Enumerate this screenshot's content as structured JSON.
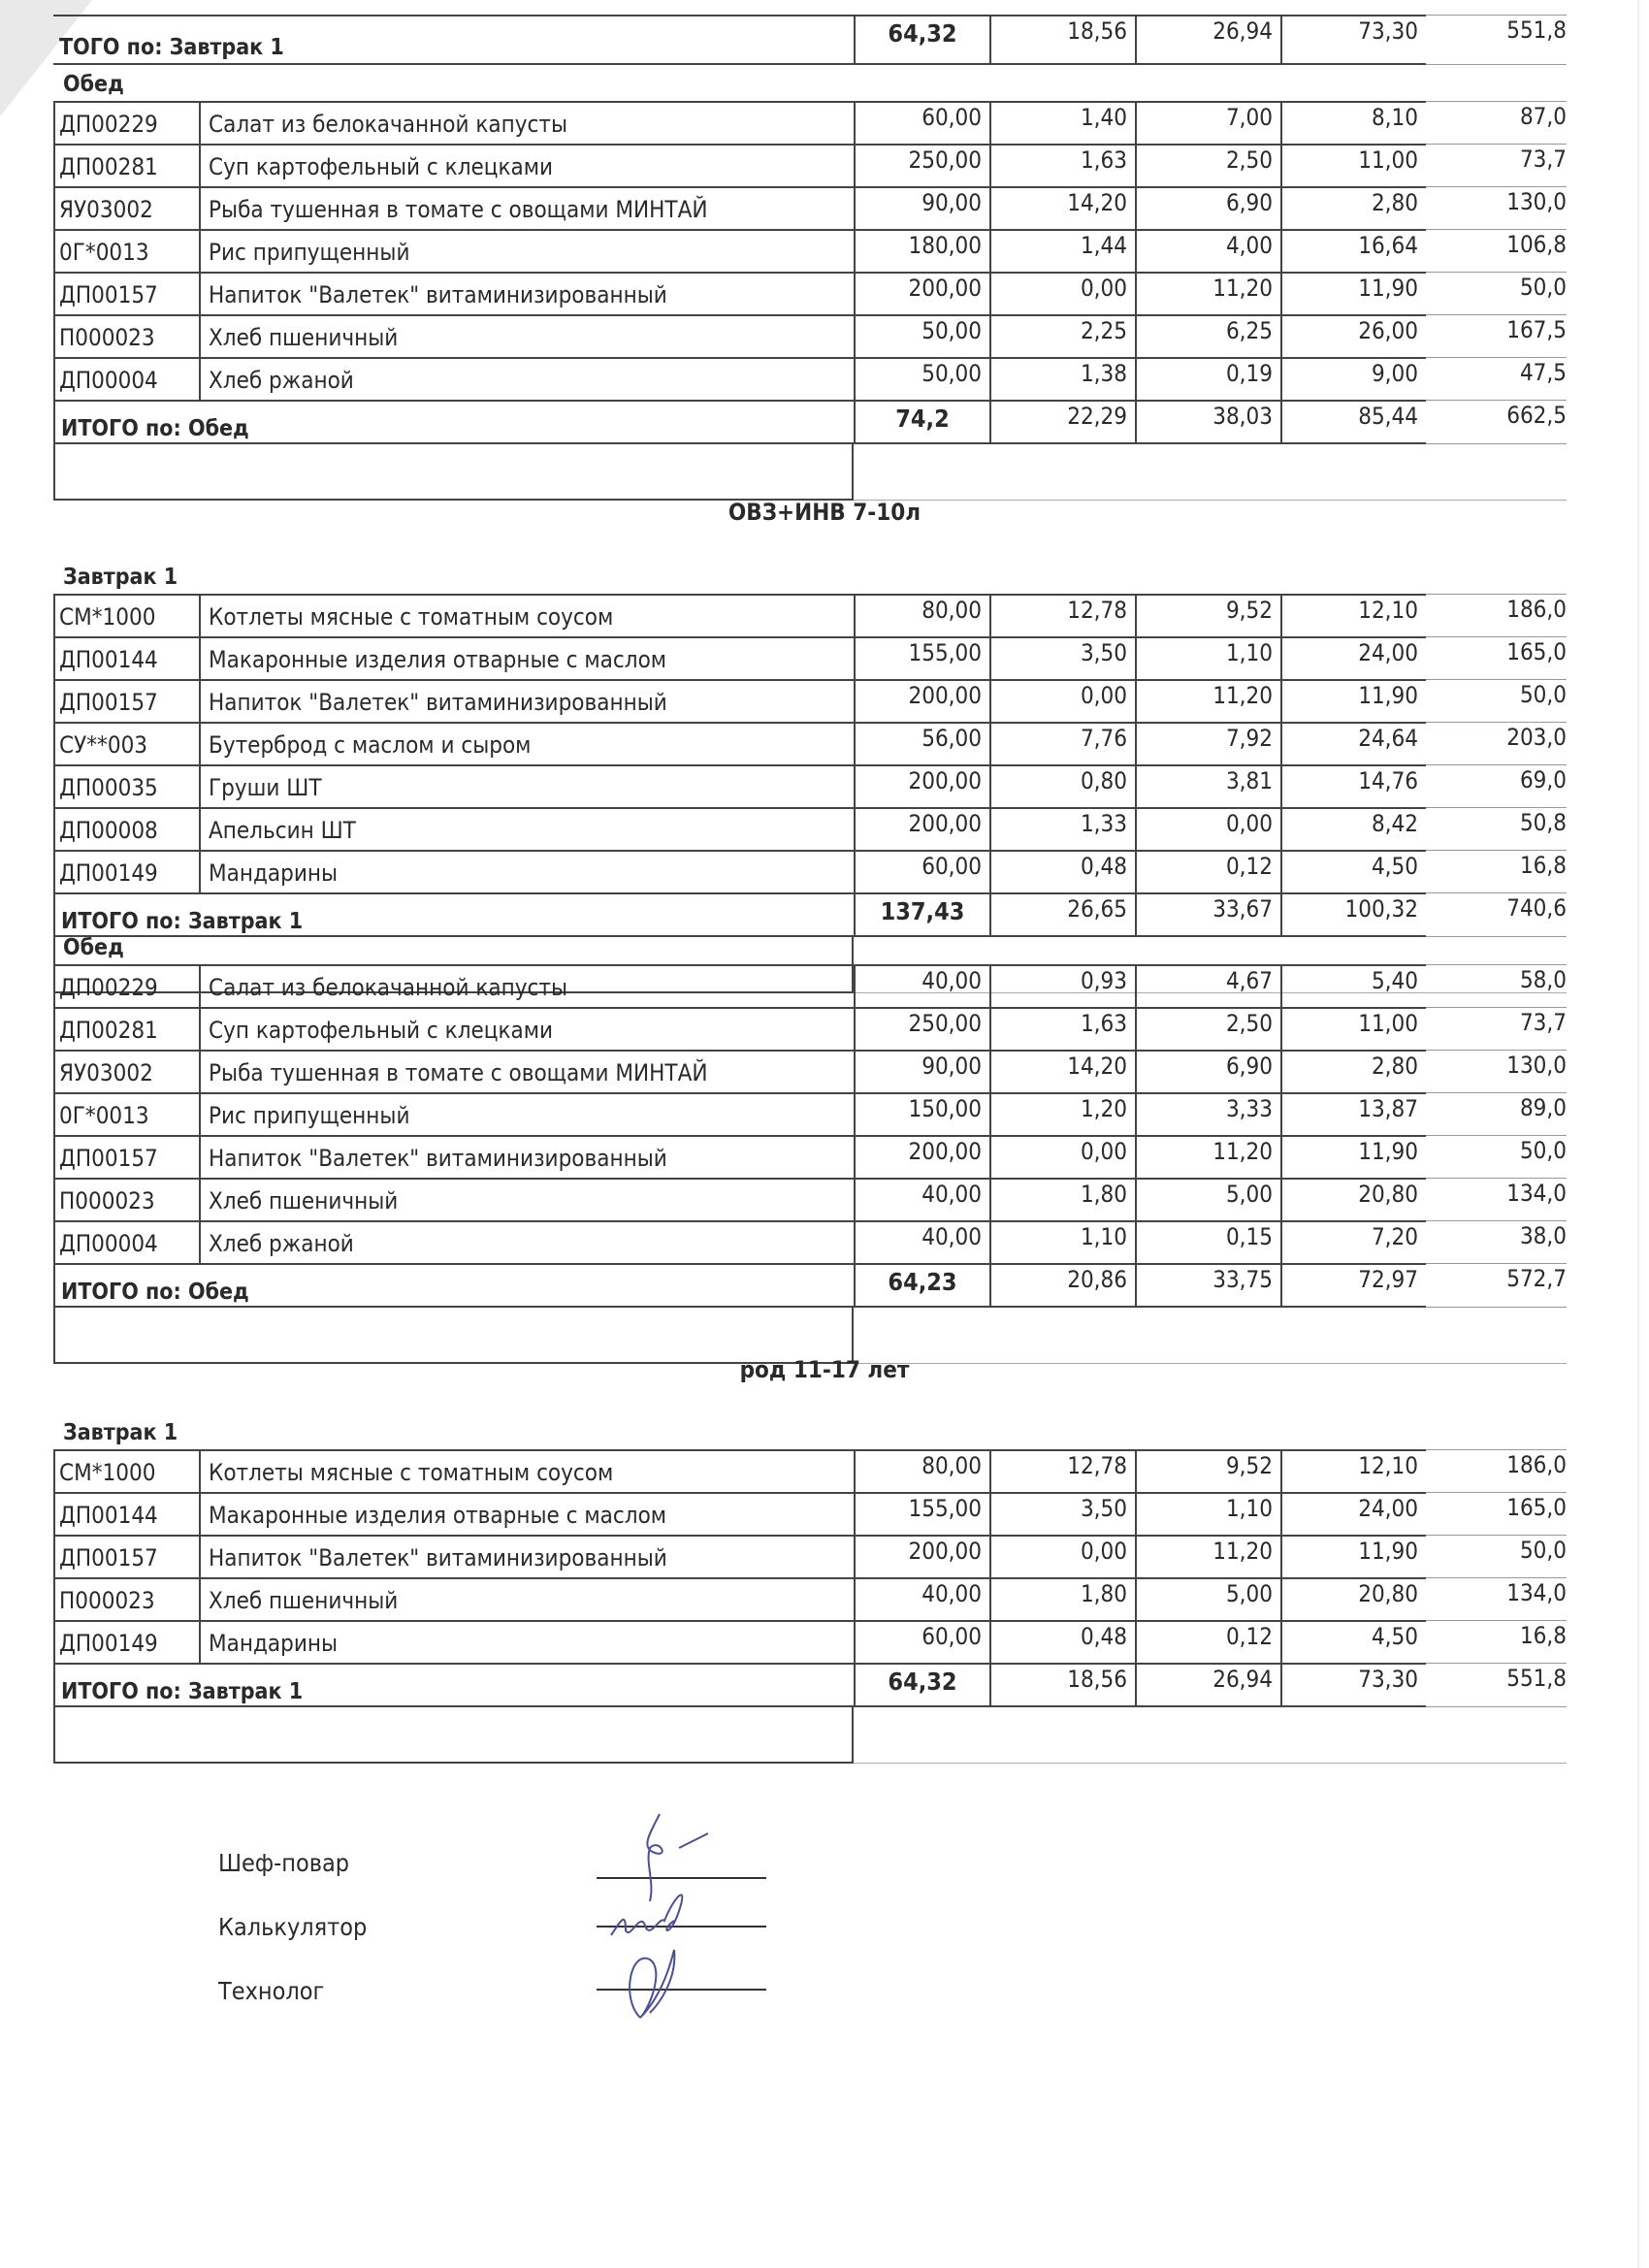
{
  "columns": [
    "code",
    "name",
    "weight",
    "col2",
    "col3",
    "col4",
    "energy"
  ],
  "top_total": {
    "label": "ТОГО по: Завтрак 1",
    "values": [
      "64,32",
      "18,56",
      "26,94",
      "73,30",
      "551,8"
    ]
  },
  "sections": [
    {
      "meal": "Обед",
      "rows": [
        [
          "ДП00229",
          "Салат из белокачанной капусты",
          "60,00",
          "1,40",
          "7,00",
          "8,10",
          "87,0"
        ],
        [
          "ДП00281",
          "Суп картофельный с клецками",
          "250,00",
          "1,63",
          "2,50",
          "11,00",
          "73,7"
        ],
        [
          "ЯУ03002",
          "Рыба тушенная  в томате с овощами МИНТАЙ",
          "90,00",
          "14,20",
          "6,90",
          "2,80",
          "130,0"
        ],
        [
          "0Г*0013",
          "Рис припущенный",
          "180,00",
          "1,44",
          "4,00",
          "16,64",
          "106,8"
        ],
        [
          "ДП00157",
          "Напиток \"Валетек\" витаминизированный",
          "200,00",
          "0,00",
          "11,20",
          "11,90",
          "50,0"
        ],
        [
          "П000023",
          "Хлеб пшеничный",
          "50,00",
          "2,25",
          "6,25",
          "26,00",
          "167,5"
        ],
        [
          "ДП00004",
          "Хлеб ржаной",
          "50,00",
          "1,38",
          "0,19",
          "9,00",
          "47,5"
        ]
      ],
      "total": {
        "label": "ИТОГО по: Обед",
        "values": [
          "74,2",
          "22,29",
          "38,03",
          "85,44",
          "662,5"
        ]
      }
    },
    {
      "group_title": "ОВЗ+ИНВ 7-10л",
      "meal": "Завтрак 1",
      "rows": [
        [
          "СМ*1000",
          "Котлеты мясные с томатным соусом",
          "80,00",
          "12,78",
          "9,52",
          "12,10",
          "186,0"
        ],
        [
          "ДП00144",
          "Макаронные изделия отварные с маслом",
          "155,00",
          "3,50",
          "1,10",
          "24,00",
          "165,0"
        ],
        [
          "ДП00157",
          "Напиток \"Валетек\" витаминизированный",
          "200,00",
          "0,00",
          "11,20",
          "11,90",
          "50,0"
        ],
        [
          "СУ**003",
          "Бутерброд с маслом и сыром",
          "56,00",
          "7,76",
          "7,92",
          "24,64",
          "203,0"
        ],
        [
          "ДП00035",
          "Груши ШТ",
          "200,00",
          "0,80",
          "3,81",
          "14,76",
          "69,0"
        ],
        [
          "ДП00008",
          "Апельсин ШТ",
          "200,00",
          "1,33",
          "0,00",
          "8,42",
          "50,8"
        ],
        [
          "ДП00149",
          "Мандарины",
          "60,00",
          "0,48",
          "0,12",
          "4,50",
          "16,8"
        ]
      ],
      "total": {
        "label": "ИТОГО по: Завтрак 1",
        "values": [
          "137,43",
          "26,65",
          "33,67",
          "100,32",
          "740,6"
        ]
      }
    },
    {
      "meal": "Обед",
      "rows": [
        [
          "ДП00229",
          "Салат из белокачанной капусты",
          "40,00",
          "0,93",
          "4,67",
          "5,40",
          "58,0"
        ],
        [
          "ДП00281",
          "Суп картофельный с клецками",
          "250,00",
          "1,63",
          "2,50",
          "11,00",
          "73,7"
        ],
        [
          "ЯУ03002",
          "Рыба тушенная  в томате с овощами МИНТАЙ",
          "90,00",
          "14,20",
          "6,90",
          "2,80",
          "130,0"
        ],
        [
          "0Г*0013",
          "Рис припущенный",
          "150,00",
          "1,20",
          "3,33",
          "13,87",
          "89,0"
        ],
        [
          "ДП00157",
          "Напиток \"Валетек\" витаминизированный",
          "200,00",
          "0,00",
          "11,20",
          "11,90",
          "50,0"
        ],
        [
          "П000023",
          "Хлеб пшеничный",
          "40,00",
          "1,80",
          "5,00",
          "20,80",
          "134,0"
        ],
        [
          "ДП00004",
          "Хлеб ржаной",
          "40,00",
          "1,10",
          "0,15",
          "7,20",
          "38,0"
        ]
      ],
      "total": {
        "label": "ИТОГО по: Обед",
        "values": [
          "64,23",
          "20,86",
          "33,75",
          "72,97",
          "572,7"
        ]
      }
    },
    {
      "group_title": "род 11-17 лет",
      "meal": "Завтрак 1",
      "rows": [
        [
          "СМ*1000",
          "Котлеты мясные с томатным соусом",
          "80,00",
          "12,78",
          "9,52",
          "12,10",
          "186,0"
        ],
        [
          "ДП00144",
          "Макаронные изделия отварные с маслом",
          "155,00",
          "3,50",
          "1,10",
          "24,00",
          "165,0"
        ],
        [
          "ДП00157",
          "Напиток \"Валетек\" витаминизированный",
          "200,00",
          "0,00",
          "11,20",
          "11,90",
          "50,0"
        ],
        [
          "П000023",
          "Хлеб пшеничный",
          "40,00",
          "1,80",
          "5,00",
          "20,80",
          "134,0"
        ],
        [
          "ДП00149",
          "Мандарины",
          "60,00",
          "0,48",
          "0,12",
          "4,50",
          "16,8"
        ]
      ],
      "total": {
        "label": "ИТОГО по: Завтрак 1",
        "values": [
          "64,32",
          "18,56",
          "26,94",
          "73,30",
          "551,8"
        ]
      }
    }
  ],
  "signatures": [
    {
      "role": "Шеф-повар"
    },
    {
      "role": "Калькулятор"
    },
    {
      "role": "Технолог"
    }
  ],
  "colors": {
    "ink": "#2a2a2a",
    "signature_ink": "#4a4f9a"
  }
}
